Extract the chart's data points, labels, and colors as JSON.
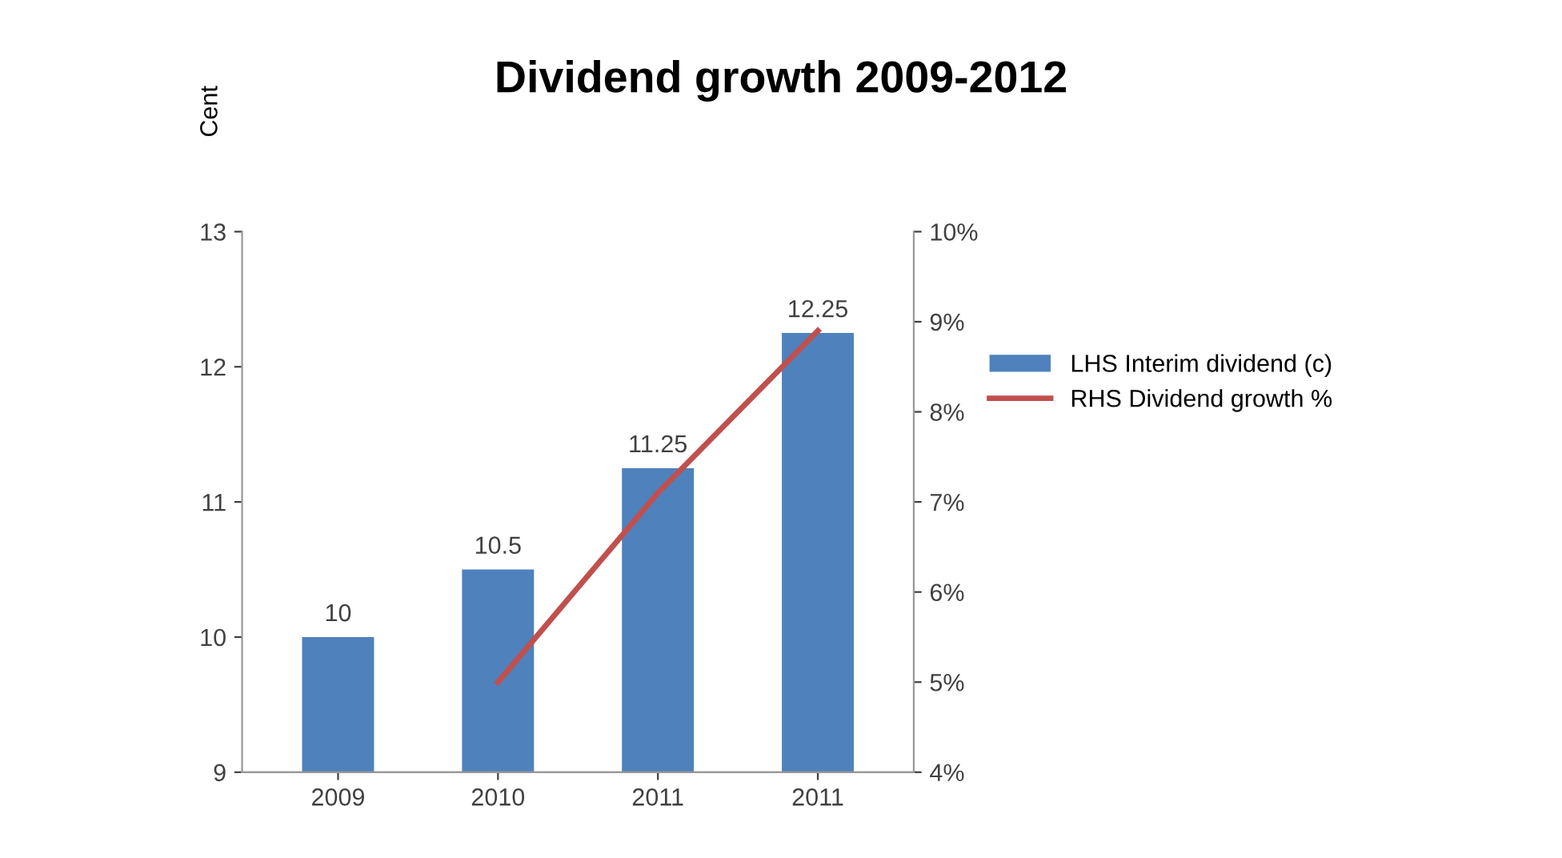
{
  "chart_data": {
    "type": "bar",
    "title": "Dividend growth 2009-2012",
    "ylabel": "Cent",
    "categories": [
      "2009",
      "2010",
      "2011",
      "2011"
    ],
    "series": [
      {
        "name": "LHS Interim dividend (c)",
        "color": "#4f81bd",
        "values": [
          10,
          10.5,
          11.25,
          12.25
        ],
        "data_labels": true
      },
      {
        "name": "RHS Dividend growth %",
        "type": "line",
        "axis": "y2",
        "color": "#c0504d",
        "values": [
          null,
          5,
          7.1,
          8.9
        ],
        "marker": "none"
      }
    ],
    "ylim": [
      9,
      13
    ],
    "yticks": [
      9,
      10,
      11,
      12,
      13
    ],
    "y2lim": [
      4,
      10
    ],
    "y2ticks": [
      {
        "value": 4,
        "label": "4%"
      },
      {
        "value": 5,
        "label": "5%"
      },
      {
        "value": 6,
        "label": "6%"
      },
      {
        "value": 7,
        "label": "7%"
      },
      {
        "value": 8,
        "label": "8%"
      },
      {
        "value": 9,
        "label": "9%"
      },
      {
        "value": 10,
        "label": "10%"
      }
    ],
    "grid": false,
    "legend": "right"
  }
}
